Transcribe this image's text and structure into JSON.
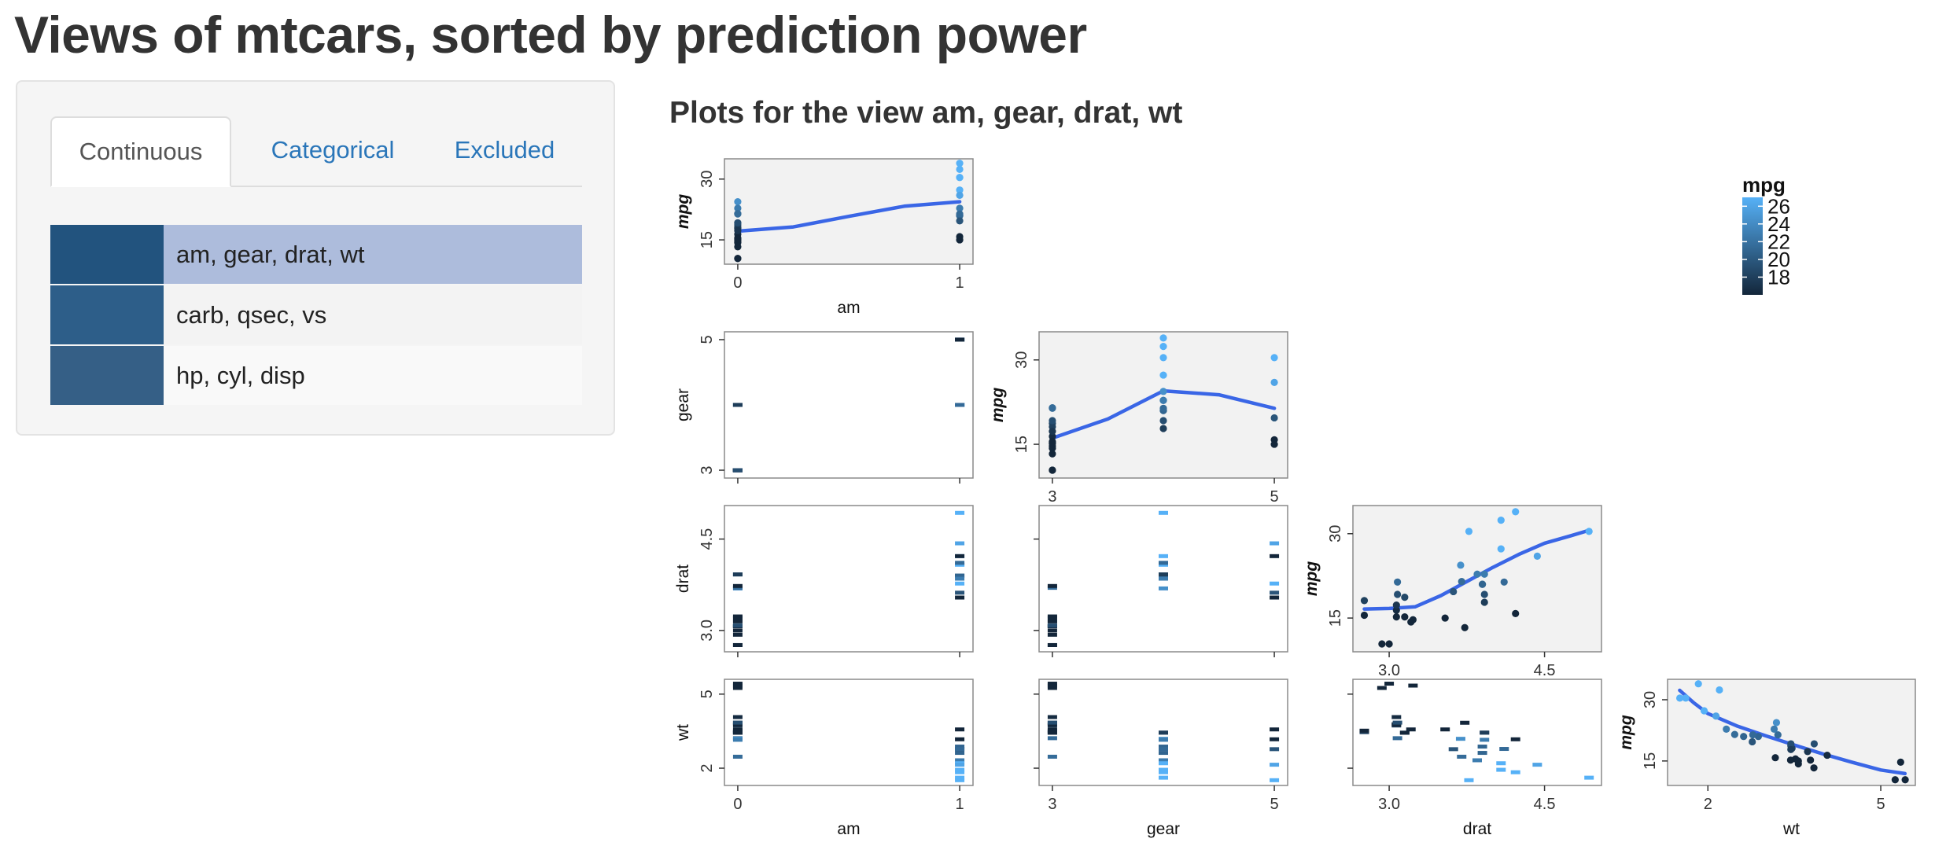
{
  "page": {
    "title": "Views of mtcars, sorted by prediction power",
    "plots_heading": "Plots for the view am, gear, drat, wt"
  },
  "tabs": [
    {
      "label": "Continuous",
      "active": true
    },
    {
      "label": "Categorical",
      "active": false
    },
    {
      "label": "Excluded",
      "active": false
    }
  ],
  "views": [
    {
      "label": "am, gear, drat, wt",
      "selected": true,
      "swatch_color": "#22537e"
    },
    {
      "label": "carb, qsec, vs",
      "selected": false,
      "swatch_color": "#2d5e89"
    },
    {
      "label": "hp, cyl, disp",
      "selected": false,
      "swatch_color": "#355f86"
    }
  ],
  "colors": {
    "panel_background": "#f2f2f2",
    "smooth_line": "#3a66e6",
    "mpg_low": "#13263a",
    "mpg_high": "#56b1f7"
  },
  "legend": {
    "title": "mpg",
    "ticks": [
      "26",
      "24",
      "22",
      "20",
      "18"
    ],
    "tick_values": [
      26,
      24,
      22,
      20,
      18
    ],
    "range": [
      16,
      27
    ]
  },
  "chart_data": {
    "type": "scatter",
    "variables": [
      "am",
      "gear",
      "drat",
      "wt"
    ],
    "target": "mpg",
    "target_axis_label": "mpg",
    "target_ticks": [
      "15",
      "30"
    ],
    "target_range": [
      9,
      35
    ],
    "axes": {
      "am": {
        "label": "am",
        "range": [
          -0.06,
          1.06
        ],
        "ticks": [
          "0",
          "1"
        ],
        "tick_values": [
          0,
          1
        ]
      },
      "gear": {
        "label": "gear",
        "range": [
          2.88,
          5.12
        ],
        "ticks": [
          "3",
          "5"
        ],
        "tick_values": [
          3,
          5
        ],
        "y_ticks": [
          "3",
          "5"
        ]
      },
      "drat": {
        "label": "drat",
        "range": [
          2.65,
          5.05
        ],
        "ticks": [
          "3.0",
          "4.5"
        ],
        "tick_values": [
          3.0,
          4.5
        ]
      },
      "wt": {
        "label": "wt",
        "range": [
          1.3,
          5.6
        ],
        "ticks": [
          "2",
          "5"
        ],
        "tick_values": [
          2,
          5
        ],
        "y_ticks": [
          "2",
          "5"
        ]
      }
    },
    "cars": [
      {
        "am": 1,
        "gear": 4,
        "drat": 3.9,
        "wt": 2.62,
        "mpg": 21.0
      },
      {
        "am": 1,
        "gear": 4,
        "drat": 3.9,
        "wt": 2.875,
        "mpg": 21.0
      },
      {
        "am": 1,
        "gear": 4,
        "drat": 3.85,
        "wt": 2.32,
        "mpg": 22.8
      },
      {
        "am": 0,
        "gear": 3,
        "drat": 3.08,
        "wt": 3.215,
        "mpg": 21.4
      },
      {
        "am": 0,
        "gear": 3,
        "drat": 3.15,
        "wt": 3.44,
        "mpg": 18.7
      },
      {
        "am": 0,
        "gear": 3,
        "drat": 2.76,
        "wt": 3.46,
        "mpg": 18.1
      },
      {
        "am": 0,
        "gear": 3,
        "drat": 3.21,
        "wt": 3.57,
        "mpg": 14.3
      },
      {
        "am": 0,
        "gear": 4,
        "drat": 3.69,
        "wt": 3.19,
        "mpg": 24.4
      },
      {
        "am": 0,
        "gear": 4,
        "drat": 3.92,
        "wt": 3.15,
        "mpg": 22.8
      },
      {
        "am": 0,
        "gear": 4,
        "drat": 3.92,
        "wt": 3.44,
        "mpg": 19.2
      },
      {
        "am": 0,
        "gear": 4,
        "drat": 3.92,
        "wt": 3.44,
        "mpg": 17.8
      },
      {
        "am": 0,
        "gear": 3,
        "drat": 3.07,
        "wt": 4.07,
        "mpg": 16.4
      },
      {
        "am": 0,
        "gear": 3,
        "drat": 3.07,
        "wt": 3.73,
        "mpg": 17.3
      },
      {
        "am": 0,
        "gear": 3,
        "drat": 3.07,
        "wt": 3.78,
        "mpg": 15.2
      },
      {
        "am": 0,
        "gear": 3,
        "drat": 2.93,
        "wt": 5.25,
        "mpg": 10.4
      },
      {
        "am": 0,
        "gear": 3,
        "drat": 3.0,
        "wt": 5.424,
        "mpg": 10.4
      },
      {
        "am": 0,
        "gear": 3,
        "drat": 3.23,
        "wt": 5.345,
        "mpg": 14.7
      },
      {
        "am": 1,
        "gear": 4,
        "drat": 4.08,
        "wt": 2.2,
        "mpg": 32.4
      },
      {
        "am": 1,
        "gear": 4,
        "drat": 4.93,
        "wt": 1.615,
        "mpg": 30.4
      },
      {
        "am": 1,
        "gear": 4,
        "drat": 4.22,
        "wt": 1.835,
        "mpg": 33.9
      },
      {
        "am": 0,
        "gear": 3,
        "drat": 3.7,
        "wt": 2.465,
        "mpg": 21.5
      },
      {
        "am": 0,
        "gear": 3,
        "drat": 2.76,
        "wt": 3.52,
        "mpg": 15.5
      },
      {
        "am": 0,
        "gear": 3,
        "drat": 3.15,
        "wt": 3.435,
        "mpg": 15.2
      },
      {
        "am": 0,
        "gear": 3,
        "drat": 3.73,
        "wt": 3.84,
        "mpg": 13.3
      },
      {
        "am": 0,
        "gear": 3,
        "drat": 3.08,
        "wt": 3.845,
        "mpg": 19.2
      },
      {
        "am": 1,
        "gear": 4,
        "drat": 4.08,
        "wt": 1.935,
        "mpg": 27.3
      },
      {
        "am": 1,
        "gear": 5,
        "drat": 4.43,
        "wt": 2.14,
        "mpg": 26.0
      },
      {
        "am": 1,
        "gear": 5,
        "drat": 3.77,
        "wt": 1.513,
        "mpg": 30.4
      },
      {
        "am": 1,
        "gear": 5,
        "drat": 4.22,
        "wt": 3.17,
        "mpg": 15.8
      },
      {
        "am": 1,
        "gear": 5,
        "drat": 3.62,
        "wt": 2.77,
        "mpg": 19.7
      },
      {
        "am": 1,
        "gear": 5,
        "drat": 3.54,
        "wt": 3.57,
        "mpg": 15.0
      },
      {
        "am": 1,
        "gear": 4,
        "drat": 4.11,
        "wt": 2.78,
        "mpg": 21.4
      }
    ],
    "smooth": {
      "am": [
        [
          0,
          17.15
        ],
        [
          0.25,
          18.2
        ],
        [
          0.5,
          20.8
        ],
        [
          0.75,
          23.3
        ],
        [
          1,
          24.4
        ]
      ],
      "gear": [
        [
          3,
          16.1
        ],
        [
          3.5,
          19.5
        ],
        [
          4,
          24.5
        ],
        [
          4.5,
          23.8
        ],
        [
          5,
          21.4
        ]
      ],
      "drat": [
        [
          2.76,
          16.6
        ],
        [
          3.0,
          16.7
        ],
        [
          3.25,
          17.0
        ],
        [
          3.5,
          19.0
        ],
        [
          3.75,
          21.5
        ],
        [
          4.0,
          24.0
        ],
        [
          4.25,
          26.3
        ],
        [
          4.5,
          28.3
        ],
        [
          4.75,
          29.6
        ],
        [
          4.93,
          30.6
        ]
      ],
      "wt": [
        [
          1.51,
          32.3
        ],
        [
          1.75,
          29.3
        ],
        [
          2.0,
          26.6
        ],
        [
          2.5,
          23.6
        ],
        [
          3.0,
          21.2
        ],
        [
          3.5,
          18.9
        ],
        [
          4.0,
          16.7
        ],
        [
          4.5,
          14.7
        ],
        [
          5.0,
          12.8
        ],
        [
          5.42,
          11.9
        ]
      ]
    }
  }
}
